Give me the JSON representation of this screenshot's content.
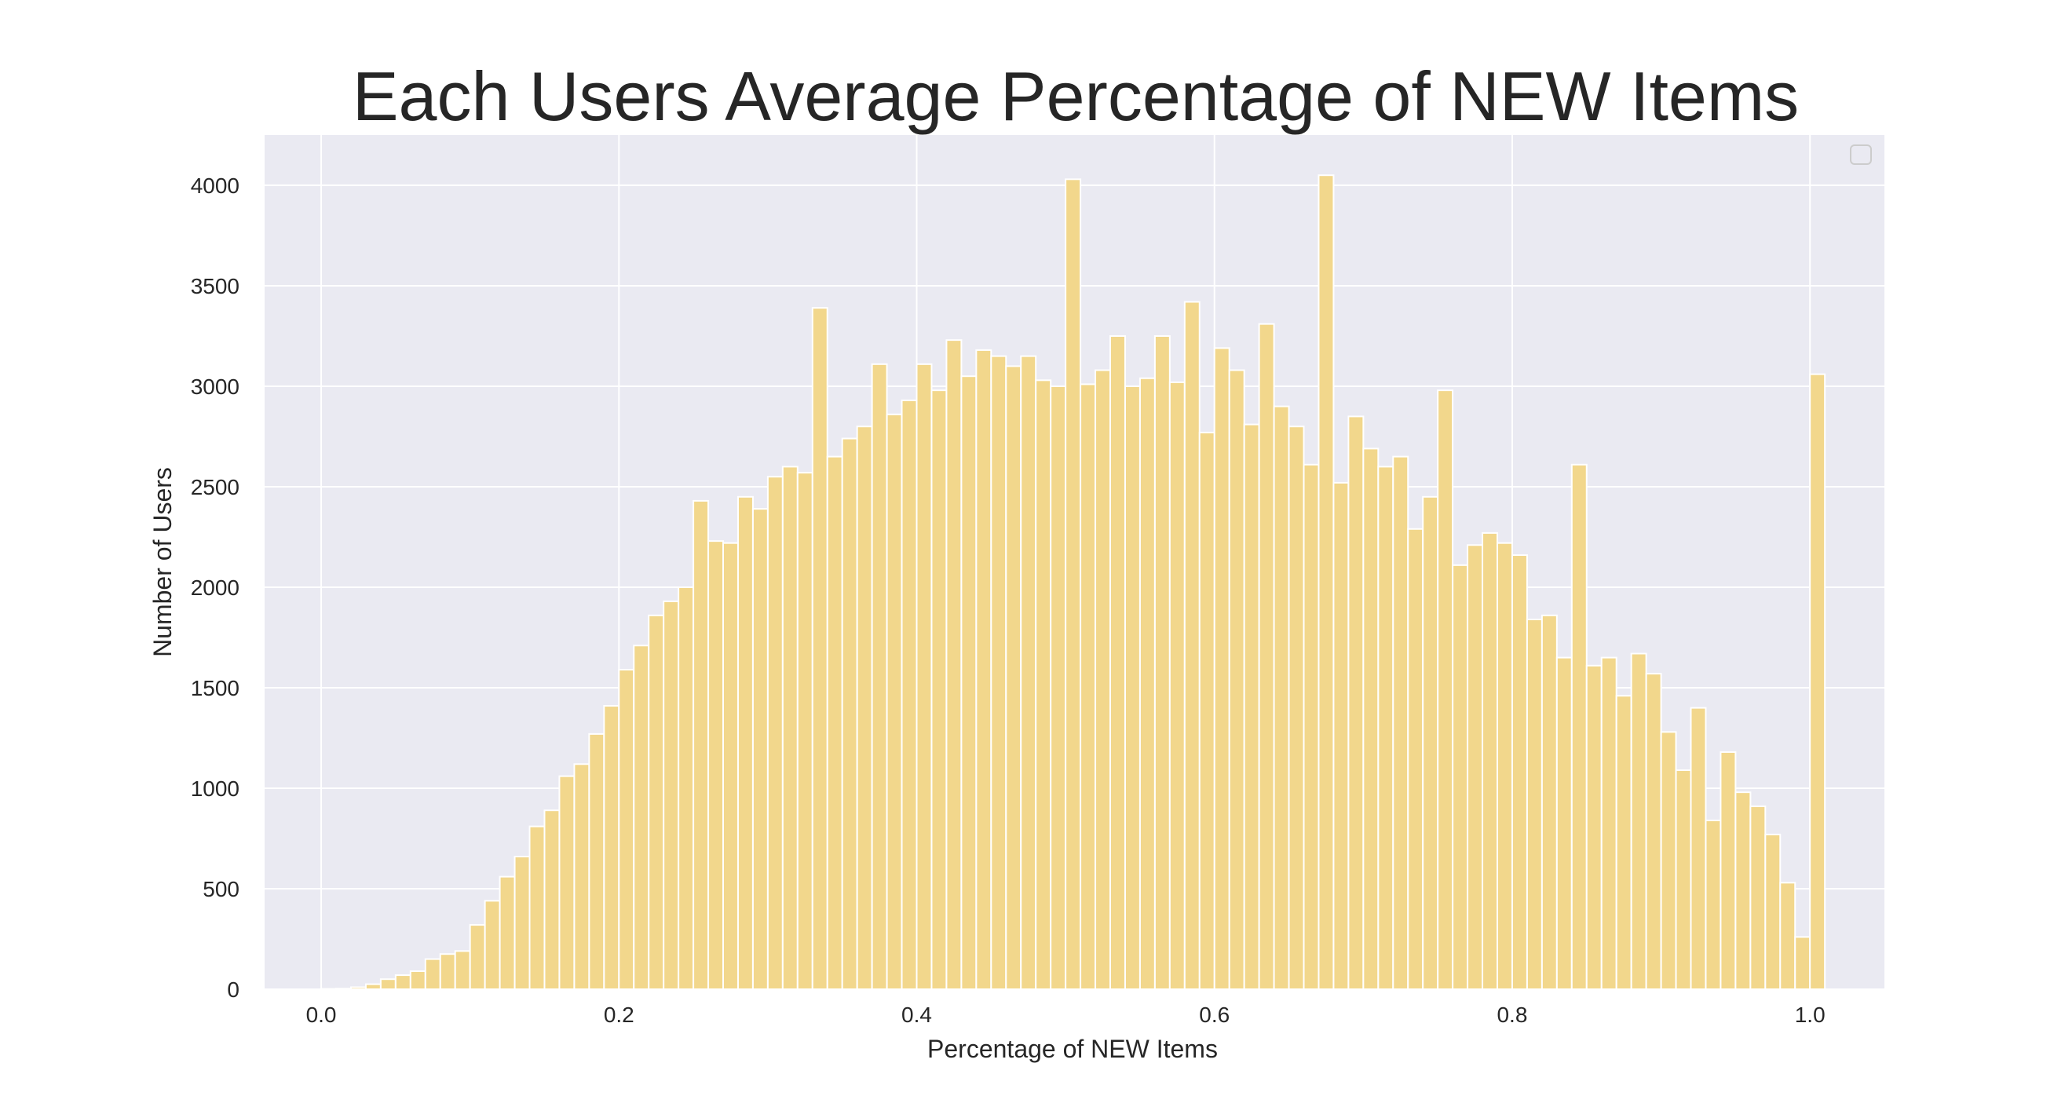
{
  "colors": {
    "plot_background": "#EAEAF2",
    "grid": "#FFFFFF",
    "bar_fill": "#F2D78C",
    "bar_edge": "#FFFFFF",
    "text": "#262626"
  },
  "chart_data": {
    "type": "bar",
    "subtype": "histogram",
    "title": "Each Users Average Percentage of NEW Items",
    "xlabel": "Percentage of NEW Items",
    "ylabel": "Number of Users",
    "xlim": [
      -0.038,
      1.05
    ],
    "ylim": [
      0,
      4250
    ],
    "grid": true,
    "legend": "top-right (empty)",
    "x_ticks": [
      0.0,
      0.2,
      0.4,
      0.6,
      0.8,
      1.0
    ],
    "x_tick_labels": [
      "0.0",
      "0.2",
      "0.4",
      "0.6",
      "0.8",
      "1.0"
    ],
    "y_ticks": [
      0,
      500,
      1000,
      1500,
      2000,
      2500,
      3000,
      3500,
      4000
    ],
    "y_tick_labels": [
      "0",
      "500",
      "1000",
      "1500",
      "2000",
      "2500",
      "3000",
      "3500",
      "4000"
    ],
    "bin_start": 0.0,
    "bin_width": 0.01,
    "values": [
      2,
      3,
      10,
      25,
      50,
      70,
      90,
      150,
      175,
      190,
      320,
      440,
      560,
      660,
      810,
      890,
      1060,
      1120,
      1270,
      1410,
      1590,
      1710,
      1860,
      1930,
      2000,
      2430,
      2230,
      2220,
      2450,
      2390,
      2550,
      2600,
      2570,
      3390,
      2650,
      2740,
      2800,
      3110,
      2860,
      2930,
      3110,
      2980,
      3230,
      3050,
      3180,
      3150,
      3100,
      3150,
      3030,
      3000,
      4030,
      3010,
      3080,
      3250,
      3000,
      3040,
      3250,
      3020,
      3420,
      2770,
      3190,
      3080,
      2810,
      3310,
      2900,
      2800,
      2610,
      4050,
      2520,
      2850,
      2690,
      2600,
      2650,
      2290,
      2450,
      2980,
      2110,
      2210,
      2270,
      2220,
      2160,
      1840,
      1860,
      1650,
      2610,
      1610,
      1650,
      1460,
      1670,
      1570,
      1280,
      1090,
      1400,
      840,
      1180,
      980,
      910,
      770,
      530,
      260,
      3060
    ]
  }
}
